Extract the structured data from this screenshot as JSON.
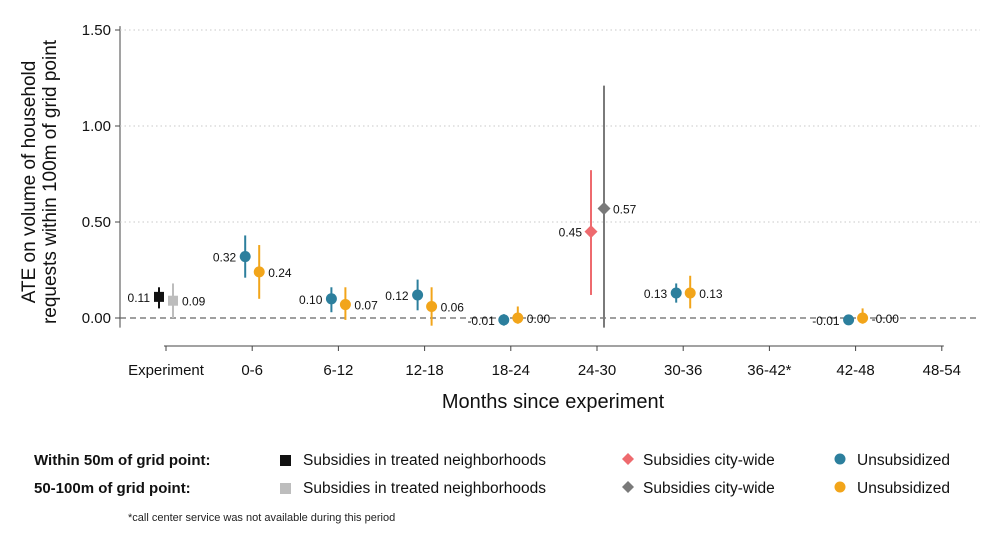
{
  "chart_data": {
    "type": "scatter",
    "subtype": "point-estimates-with-confidence-intervals",
    "xlabel": "Months since experiment",
    "ylabel_lines": [
      "ATE on volume of household",
      "requests within 100m of grid point"
    ],
    "yticks": [
      "0.00",
      "0.50",
      "1.00",
      "1.50"
    ],
    "ylim": [
      -0.08,
      1.55
    ],
    "grid": "horizontal dotted",
    "reference_line": 0,
    "categories": [
      "Experiment",
      "0-6",
      "6-12",
      "12-18",
      "18-24",
      "24-30",
      "30-36",
      "36-42*",
      "42-48",
      "48-54"
    ],
    "series": [
      {
        "name": "Subsidies in treated neighborhoods",
        "group": "Within 50m of grid point",
        "color": "#111111",
        "marker": "square",
        "points": [
          {
            "x": "Experiment",
            "y": 0.11,
            "label": "0.11",
            "ci": [
              0.05,
              0.16
            ]
          }
        ]
      },
      {
        "name": "Subsidies in treated neighborhoods",
        "group": "50-100m of grid point",
        "color": "#bdbdbd",
        "marker": "square",
        "points": [
          {
            "x": "Experiment",
            "y": 0.09,
            "label": "0.09",
            "ci": [
              0.0,
              0.18
            ]
          }
        ]
      },
      {
        "name": "Subsidies city-wide",
        "group": "Within 50m of grid point",
        "color": "#ee6a6e",
        "marker": "diamond",
        "points": [
          {
            "x": "24-30",
            "y": 0.45,
            "label": "0.45",
            "ci": [
              0.12,
              0.77
            ]
          }
        ]
      },
      {
        "name": "Subsidies city-wide",
        "group": "50-100m of grid point",
        "color": "#7a7a7a",
        "marker": "diamond",
        "points": [
          {
            "x": "24-30",
            "y": 0.57,
            "label": "0.57",
            "ci": [
              -0.05,
              1.21
            ]
          }
        ]
      },
      {
        "name": "Unsubsidized",
        "group": "Within 50m of grid point",
        "color": "#2c7f9d",
        "marker": "circle",
        "points": [
          {
            "x": "0-6",
            "y": 0.32,
            "label": "0.32",
            "ci": [
              0.21,
              0.43
            ]
          },
          {
            "x": "6-12",
            "y": 0.1,
            "label": "0.10",
            "ci": [
              0.03,
              0.16
            ]
          },
          {
            "x": "12-18",
            "y": 0.12,
            "label": "0.12",
            "ci": [
              0.04,
              0.2
            ]
          },
          {
            "x": "18-24",
            "y": -0.01,
            "label": "-0.01",
            "ci": [
              -0.04,
              0.02
            ]
          },
          {
            "x": "30-36",
            "y": 0.13,
            "label": "0.13",
            "ci": [
              0.08,
              0.18
            ]
          },
          {
            "x": "42-48",
            "y": -0.01,
            "label": "-0.01",
            "ci": [
              -0.02,
              0.01
            ]
          }
        ]
      },
      {
        "name": "Unsubsidized",
        "group": "50-100m of grid point",
        "color": "#f2a51a",
        "marker": "circle",
        "points": [
          {
            "x": "0-6",
            "y": 0.24,
            "label": "0.24",
            "ci": [
              0.1,
              0.38
            ]
          },
          {
            "x": "6-12",
            "y": 0.07,
            "label": "0.07",
            "ci": [
              -0.01,
              0.16
            ]
          },
          {
            "x": "12-18",
            "y": 0.06,
            "label": "0.06",
            "ci": [
              -0.04,
              0.16
            ]
          },
          {
            "x": "18-24",
            "y": 0.0,
            "label": "0.00",
            "ci": [
              -0.03,
              0.06
            ]
          },
          {
            "x": "30-36",
            "y": 0.13,
            "label": "0.13",
            "ci": [
              0.05,
              0.22
            ]
          },
          {
            "x": "42-48",
            "y": 0.0,
            "label": "-0.00",
            "ci": [
              -0.03,
              0.05
            ]
          }
        ]
      }
    ]
  },
  "legend": {
    "rows": [
      {
        "title": "Within 50m of grid point:",
        "items": [
          {
            "label": "Subsidies in treated neighborhoods",
            "marker": "square",
            "color": "#111111"
          },
          {
            "label": "Subsidies city-wide",
            "marker": "diamond",
            "color": "#ee6a6e"
          },
          {
            "label": "Unsubsidized",
            "marker": "circle",
            "color": "#2c7f9d"
          }
        ]
      },
      {
        "title": "50-100m of grid point:",
        "items": [
          {
            "label": "Subsidies in treated neighborhoods",
            "marker": "square",
            "color": "#bdbdbd"
          },
          {
            "label": "Subsidies city-wide",
            "marker": "diamond",
            "color": "#7a7a7a"
          },
          {
            "label": "Unsubsidized",
            "marker": "circle",
            "color": "#f2a51a"
          }
        ]
      }
    ]
  },
  "footnote": "*call center service was not available during this period"
}
